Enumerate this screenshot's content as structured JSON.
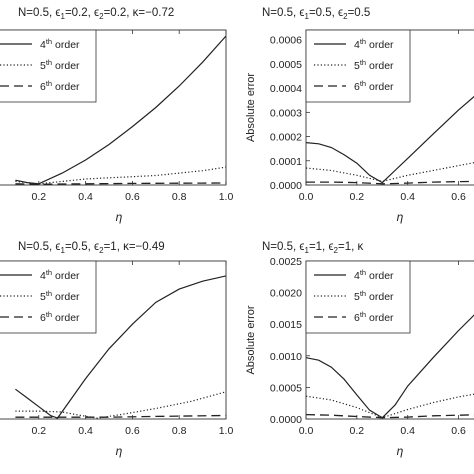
{
  "chart_data": [
    {
      "id": "p1",
      "type": "line",
      "title": "N=0.5, ϵ1=0.2, ϵ2=0.2, κ=−0.72",
      "title_segments": [
        [
          "N=0.5, ϵ",
          ""
        ],
        [
          "1",
          "sub"
        ],
        [
          "=0.2, ϵ",
          ""
        ],
        [
          "2",
          "sub"
        ],
        [
          "=0.2, κ=−0.72",
          ""
        ]
      ],
      "xlabel": "η",
      "ylabel": "",
      "xlim": [
        0.0,
        1.0
      ],
      "ylim": [
        0.0,
        0.0013
      ],
      "x_ticks": [
        "0.2",
        "0.4",
        "0.6",
        "0.8",
        "1.0"
      ],
      "x_tick_values": [
        0.2,
        0.4,
        0.6,
        0.8,
        1.0
      ],
      "y_ticks": [],
      "y_tick_values": [],
      "legend": "top-left",
      "series": [
        {
          "name": "4th order",
          "style": "solid",
          "x": [
            0.1,
            0.15,
            0.2,
            0.3,
            0.4,
            0.5,
            0.6,
            0.7,
            0.8,
            0.9,
            1.0
          ],
          "y": [
            4e-05,
            2e-05,
            1e-05,
            0.0001,
            0.00021,
            0.00034,
            0.00049,
            0.00065,
            0.00083,
            0.00103,
            0.00125
          ]
        },
        {
          "name": "5th order",
          "style": "dotted",
          "x": [
            0.1,
            0.2,
            0.3,
            0.4,
            0.5,
            0.6,
            0.7,
            0.8,
            0.9,
            1.0
          ],
          "y": [
            3e-05,
            1e-05,
            3e-05,
            5e-05,
            6e-05,
            7e-05,
            8e-05,
            0.0001,
            0.00012,
            0.00015
          ]
        },
        {
          "name": "6th order",
          "style": "dashed",
          "x": [
            0.1,
            0.2,
            0.3,
            0.4,
            0.5,
            0.6,
            0.7,
            0.8,
            0.9,
            1.0
          ],
          "y": [
            1e-05,
            5e-06,
            8e-06,
            1e-05,
            1.2e-05,
            1.3e-05,
            1.4e-05,
            1.5e-05,
            1.6e-05,
            1.7e-05
          ]
        }
      ]
    },
    {
      "id": "p2",
      "type": "line",
      "title": "N=0.5, ϵ1=0.5, ϵ2=0.5",
      "title_segments": [
        [
          "N=0.5, ϵ",
          ""
        ],
        [
          "1",
          "sub"
        ],
        [
          "=0.5, ϵ",
          ""
        ],
        [
          "2",
          "sub"
        ],
        [
          "=0.5",
          ""
        ]
      ],
      "xlabel": "η",
      "ylabel": "Absolute error",
      "xlim": [
        0.0,
        0.7
      ],
      "ylim": [
        0.0,
        0.00064
      ],
      "x_ticks": [
        "0.0",
        "0.2",
        "0.4",
        "0.6"
      ],
      "x_tick_values": [
        0.0,
        0.2,
        0.4,
        0.6
      ],
      "y_ticks": [
        "0.0000",
        "0.0001",
        "0.0002",
        "0.0003",
        "0.0004",
        "0.0005",
        "0.0006"
      ],
      "y_tick_values": [
        0.0,
        0.0001,
        0.0002,
        0.0003,
        0.0004,
        0.0005,
        0.0006
      ],
      "legend": "top-left",
      "series": [
        {
          "name": "4th order",
          "style": "solid",
          "x": [
            0.0,
            0.05,
            0.1,
            0.15,
            0.2,
            0.25,
            0.3,
            0.35,
            0.4,
            0.5,
            0.6,
            0.7
          ],
          "y": [
            0.000175,
            0.00017,
            0.000155,
            0.000125,
            9e-05,
            4e-05,
            1e-05,
            6e-05,
            0.00011,
            0.00021,
            0.00031,
            0.0004
          ]
        },
        {
          "name": "5th order",
          "style": "dotted",
          "x": [
            0.0,
            0.1,
            0.2,
            0.3,
            0.4,
            0.5,
            0.6,
            0.7
          ],
          "y": [
            7e-05,
            6e-05,
            4e-05,
            1.5e-05,
            4e-05,
            6e-05,
            8e-05,
            0.0001
          ]
        },
        {
          "name": "6th order",
          "style": "dashed",
          "x": [
            0.0,
            0.1,
            0.2,
            0.3,
            0.4,
            0.5,
            0.6,
            0.7
          ],
          "y": [
            1.2e-05,
            1.2e-05,
            1e-05,
            5e-06,
            8e-06,
            1.2e-05,
            1.4e-05,
            1.5e-05
          ]
        }
      ]
    },
    {
      "id": "p3",
      "type": "line",
      "title": "N=0.5, ϵ1=0.5, ϵ2=1, κ=−0.49",
      "title_segments": [
        [
          "N=0.5, ϵ",
          ""
        ],
        [
          "1",
          "sub"
        ],
        [
          "=0.5, ϵ",
          ""
        ],
        [
          "2",
          "sub"
        ],
        [
          "=1, κ=−0.49",
          ""
        ]
      ],
      "xlabel": "η",
      "ylabel": "",
      "xlim": [
        0.0,
        1.0
      ],
      "ylim": [
        0.0,
        0.0018
      ],
      "x_ticks": [
        "0.2",
        "0.4",
        "0.6",
        "0.8",
        "1.0"
      ],
      "x_tick_values": [
        0.2,
        0.4,
        0.6,
        0.8,
        1.0
      ],
      "y_ticks": [],
      "y_tick_values": [],
      "legend": "top-left",
      "series": [
        {
          "name": "4th order",
          "style": "solid",
          "x": [
            0.1,
            0.15,
            0.2,
            0.25,
            0.28,
            0.32,
            0.4,
            0.5,
            0.6,
            0.7,
            0.8,
            0.9,
            1.0
          ],
          "y": [
            0.00034,
            0.00024,
            0.00014,
            4e-05,
            1e-05,
            0.00016,
            0.00046,
            0.0008,
            0.00108,
            0.00133,
            0.00148,
            0.00157,
            0.00163
          ]
        },
        {
          "name": "5th order",
          "style": "dotted",
          "x": [
            0.1,
            0.2,
            0.3,
            0.38,
            0.45,
            0.55,
            0.7,
            0.85,
            1.0
          ],
          "y": [
            9e-05,
            9e-05,
            8e-05,
            4e-05,
            1e-05,
            5e-05,
            0.00012,
            0.0002,
            0.00031
          ]
        },
        {
          "name": "6th order",
          "style": "dashed",
          "x": [
            0.1,
            0.3,
            0.5,
            0.7,
            1.0
          ],
          "y": [
            2e-05,
            2e-05,
            2e-05,
            3e-05,
            4e-05
          ]
        }
      ]
    },
    {
      "id": "p4",
      "type": "line",
      "title": "N=0.5, ϵ1=1, ϵ2=1, κ",
      "title_segments": [
        [
          "N=0.5, ϵ",
          ""
        ],
        [
          "1",
          "sub"
        ],
        [
          "=1, ϵ",
          ""
        ],
        [
          "2",
          "sub"
        ],
        [
          "=1, κ",
          ""
        ]
      ],
      "xlabel": "η",
      "ylabel": "Absolute error",
      "xlim": [
        0.0,
        0.7
      ],
      "ylim": [
        0.0,
        0.0025
      ],
      "x_ticks": [
        "0.0",
        "0.2",
        "0.4",
        "0.6"
      ],
      "x_tick_values": [
        0.0,
        0.2,
        0.4,
        0.6
      ],
      "y_ticks": [
        "0.0000",
        "0.0005",
        "0.0010",
        "0.0015",
        "0.0020",
        "0.0025"
      ],
      "y_tick_values": [
        0.0,
        0.0005,
        0.001,
        0.0015,
        0.002,
        0.0025
      ],
      "legend": "top-left",
      "series": [
        {
          "name": "4th order",
          "style": "solid",
          "x": [
            0.0,
            0.05,
            0.1,
            0.15,
            0.2,
            0.25,
            0.3,
            0.35,
            0.4,
            0.5,
            0.6,
            0.7
          ],
          "y": [
            0.00097,
            0.00093,
            0.00082,
            0.00063,
            0.00038,
            0.00014,
            2e-05,
            0.00022,
            0.00052,
            0.00097,
            0.0014,
            0.0018
          ]
        },
        {
          "name": "5th order",
          "style": "dotted",
          "x": [
            0.0,
            0.1,
            0.2,
            0.3,
            0.4,
            0.5,
            0.6,
            0.7
          ],
          "y": [
            0.00036,
            0.0003,
            0.00018,
            2e-05,
            0.00015,
            0.00026,
            0.00035,
            0.00042
          ]
        },
        {
          "name": "6th order",
          "style": "dashed",
          "x": [
            0.0,
            0.1,
            0.2,
            0.3,
            0.4,
            0.5,
            0.6,
            0.7
          ],
          "y": [
            7e-05,
            6e-05,
            4e-05,
            2e-05,
            3e-05,
            5e-05,
            6e-05,
            7e-05
          ]
        }
      ]
    }
  ]
}
